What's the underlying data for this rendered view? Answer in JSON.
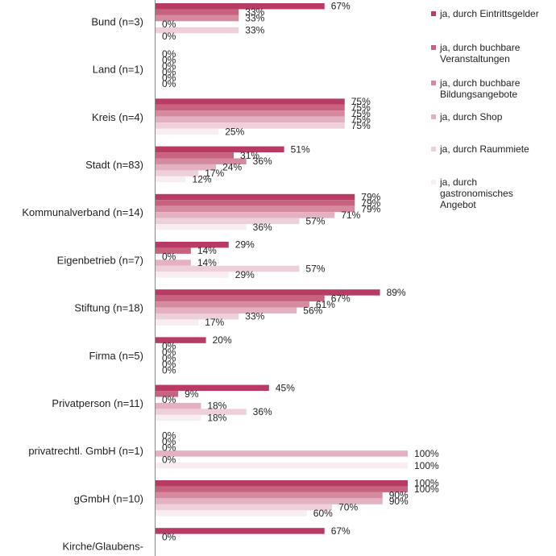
{
  "chart_data": {
    "type": "bar",
    "orientation": "horizontal",
    "categories": [
      "Bund (n=3)",
      "Land (n=1)",
      "Kreis (n=4)",
      "Stadt (n=83)",
      "Kommunalverband (n=14)",
      "Eigenbetrieb (n=7)",
      "Stiftung (n=18)",
      "Firma (n=5)",
      "Privatperson (n=11)",
      "privatrechtl. GmbH (n=1)",
      "gGmbH (n=10)",
      "Kirche/Glaubens-"
    ],
    "series": [
      {
        "name": "ja, durch Eintrittsgelder",
        "color": "#b83b63",
        "values": [
          67,
          0,
          75,
          51,
          79,
          29,
          89,
          20,
          45,
          0,
          100,
          67
        ]
      },
      {
        "name": "ja, durch buchbare\nVeranstaltungen",
        "color": "#c8637f",
        "values": [
          33,
          0,
          75,
          31,
          79,
          14,
          67,
          0,
          9,
          0,
          100,
          0
        ]
      },
      {
        "name": "ja, durch buchbare\nBildungsangebote",
        "color": "#d68aa0",
        "values": [
          33,
          0,
          75,
          36,
          79,
          0,
          61,
          0,
          0,
          0,
          90,
          null
        ]
      },
      {
        "name": "ja, durch Shop",
        "color": "#e3b1c0",
        "values": [
          0,
          0,
          75,
          24,
          71,
          14,
          56,
          0,
          18,
          100,
          90,
          null
        ]
      },
      {
        "name": "ja, durch Raummiete",
        "color": "#eed0da",
        "values": [
          33,
          0,
          75,
          17,
          57,
          57,
          33,
          0,
          36,
          0,
          70,
          null
        ]
      },
      {
        "name": "ja, durch\ngastronomisches\nAngebot",
        "color": "#f8eef2",
        "values": [
          0,
          0,
          25,
          12,
          36,
          29,
          17,
          0,
          18,
          100,
          60,
          null
        ]
      }
    ],
    "value_suffix": "%",
    "xlim": [
      0,
      100
    ],
    "legend_position": "right"
  }
}
